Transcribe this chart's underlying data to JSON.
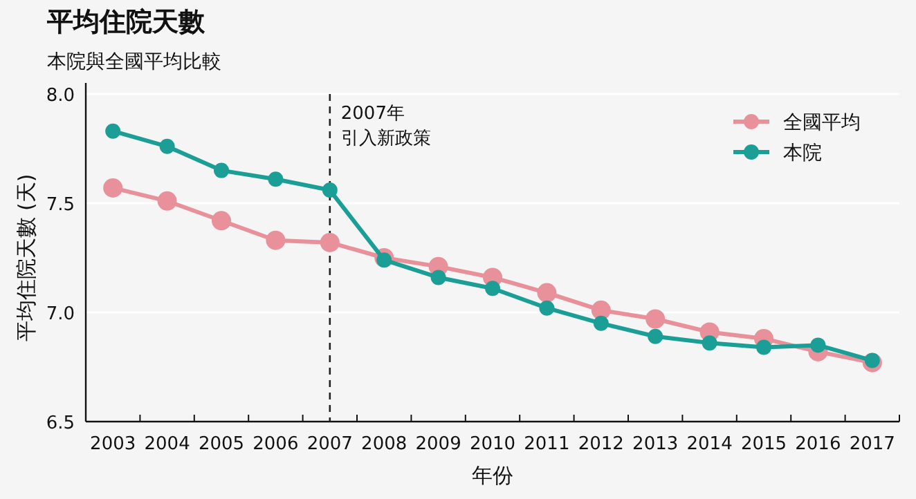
{
  "chart_data": {
    "type": "line",
    "title": "平均住院天數",
    "subtitle": "本院與全國平均比較",
    "xlabel": "年份",
    "ylabel": "平均住院天數 (天)",
    "categories": [
      "2003",
      "2004",
      "2005",
      "2006",
      "2007",
      "2008",
      "2009",
      "2010",
      "2011",
      "2012",
      "2013",
      "2014",
      "2015",
      "2016",
      "2017"
    ],
    "series": [
      {
        "name": "全國平均",
        "color": "#e8919a",
        "values": [
          7.57,
          7.51,
          7.42,
          7.33,
          7.32,
          7.25,
          7.21,
          7.16,
          7.09,
          7.01,
          6.97,
          6.91,
          6.88,
          6.82,
          6.77
        ]
      },
      {
        "name": "本院",
        "color": "#1a9e96",
        "values": [
          7.83,
          7.76,
          7.65,
          7.61,
          7.56,
          7.24,
          7.16,
          7.11,
          7.02,
          6.95,
          6.89,
          6.86,
          6.84,
          6.85,
          6.78
        ]
      }
    ],
    "ylim": [
      6.5,
      8.0
    ],
    "yticks": [
      6.5,
      {
        "value": 7,
        "label": "7.0"
      },
      7.5,
      {
        "value": 8,
        "label": "8.0"
      }
    ],
    "annotations": [
      "引入新政策"
    ],
    "grid": "y",
    "legend": "top right",
    "marker": "circle",
    "line_style": "solid",
    "ref_lines": [
      {
        "axis": "x",
        "value": "2007",
        "label": "2007年",
        "color": "#222222",
        "line_style": "dashed"
      }
    ]
  }
}
